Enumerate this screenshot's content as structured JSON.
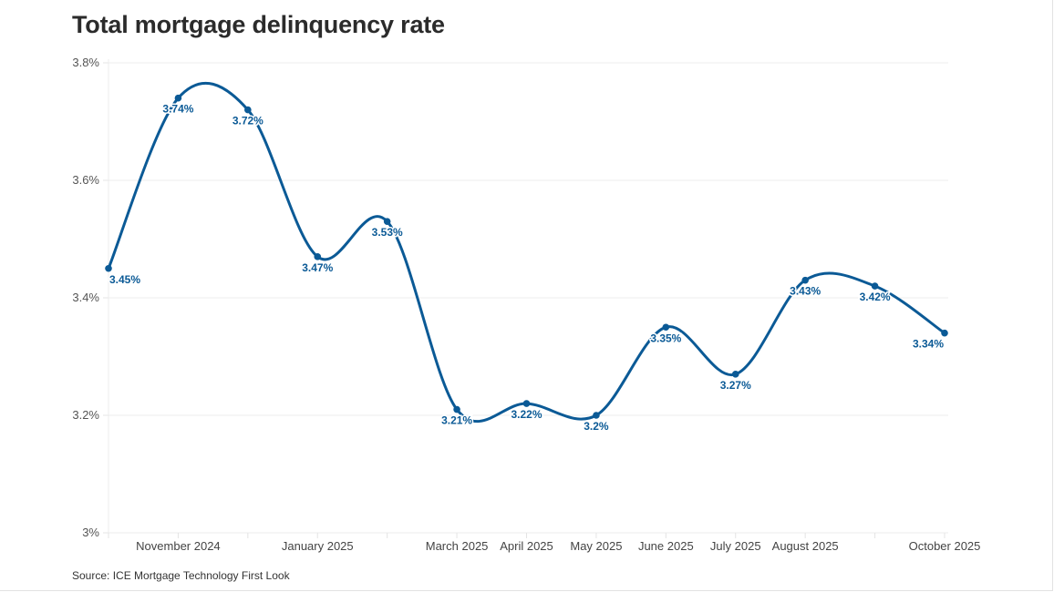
{
  "chart_data": {
    "type": "line",
    "title": "Total mortgage delinquency rate",
    "source": "Source: ICE Mortgage Technology First Look",
    "xlabel": "",
    "ylabel": "",
    "ylim": [
      3.0,
      3.8
    ],
    "yticks": [
      3.0,
      3.2,
      3.4,
      3.6,
      3.8
    ],
    "ytick_labels": [
      "3%",
      "3.2%",
      "3.4%",
      "3.6%",
      "3.8%"
    ],
    "grid": true,
    "x": [
      "October 2024",
      "November 2024",
      "December 2024",
      "January 2025",
      "February 2025",
      "March 2025",
      "April 2025",
      "May 2025",
      "June 2025",
      "July 2025",
      "August 2025",
      "September 2025",
      "October 2025"
    ],
    "x_tick_labels": [
      "",
      "November 2024",
      "",
      "January 2025",
      "",
      "March 2025",
      "April 2025",
      "May 2025",
      "June 2025",
      "July 2025",
      "August 2025",
      "",
      "October 2025"
    ],
    "series": [
      {
        "name": "Total mortgage delinquency rate",
        "color": "#0b5a96",
        "values": [
          3.45,
          3.74,
          3.72,
          3.47,
          3.53,
          3.21,
          3.22,
          3.2,
          3.35,
          3.27,
          3.43,
          3.42,
          3.34
        ],
        "labels": [
          "3.45%",
          "3.74%",
          "3.72%",
          "3.47%",
          "3.53%",
          "3.21%",
          "3.22%",
          "3.2%",
          "3.35%",
          "3.27%",
          "3.43%",
          "3.42%",
          "3.34%"
        ]
      }
    ]
  }
}
